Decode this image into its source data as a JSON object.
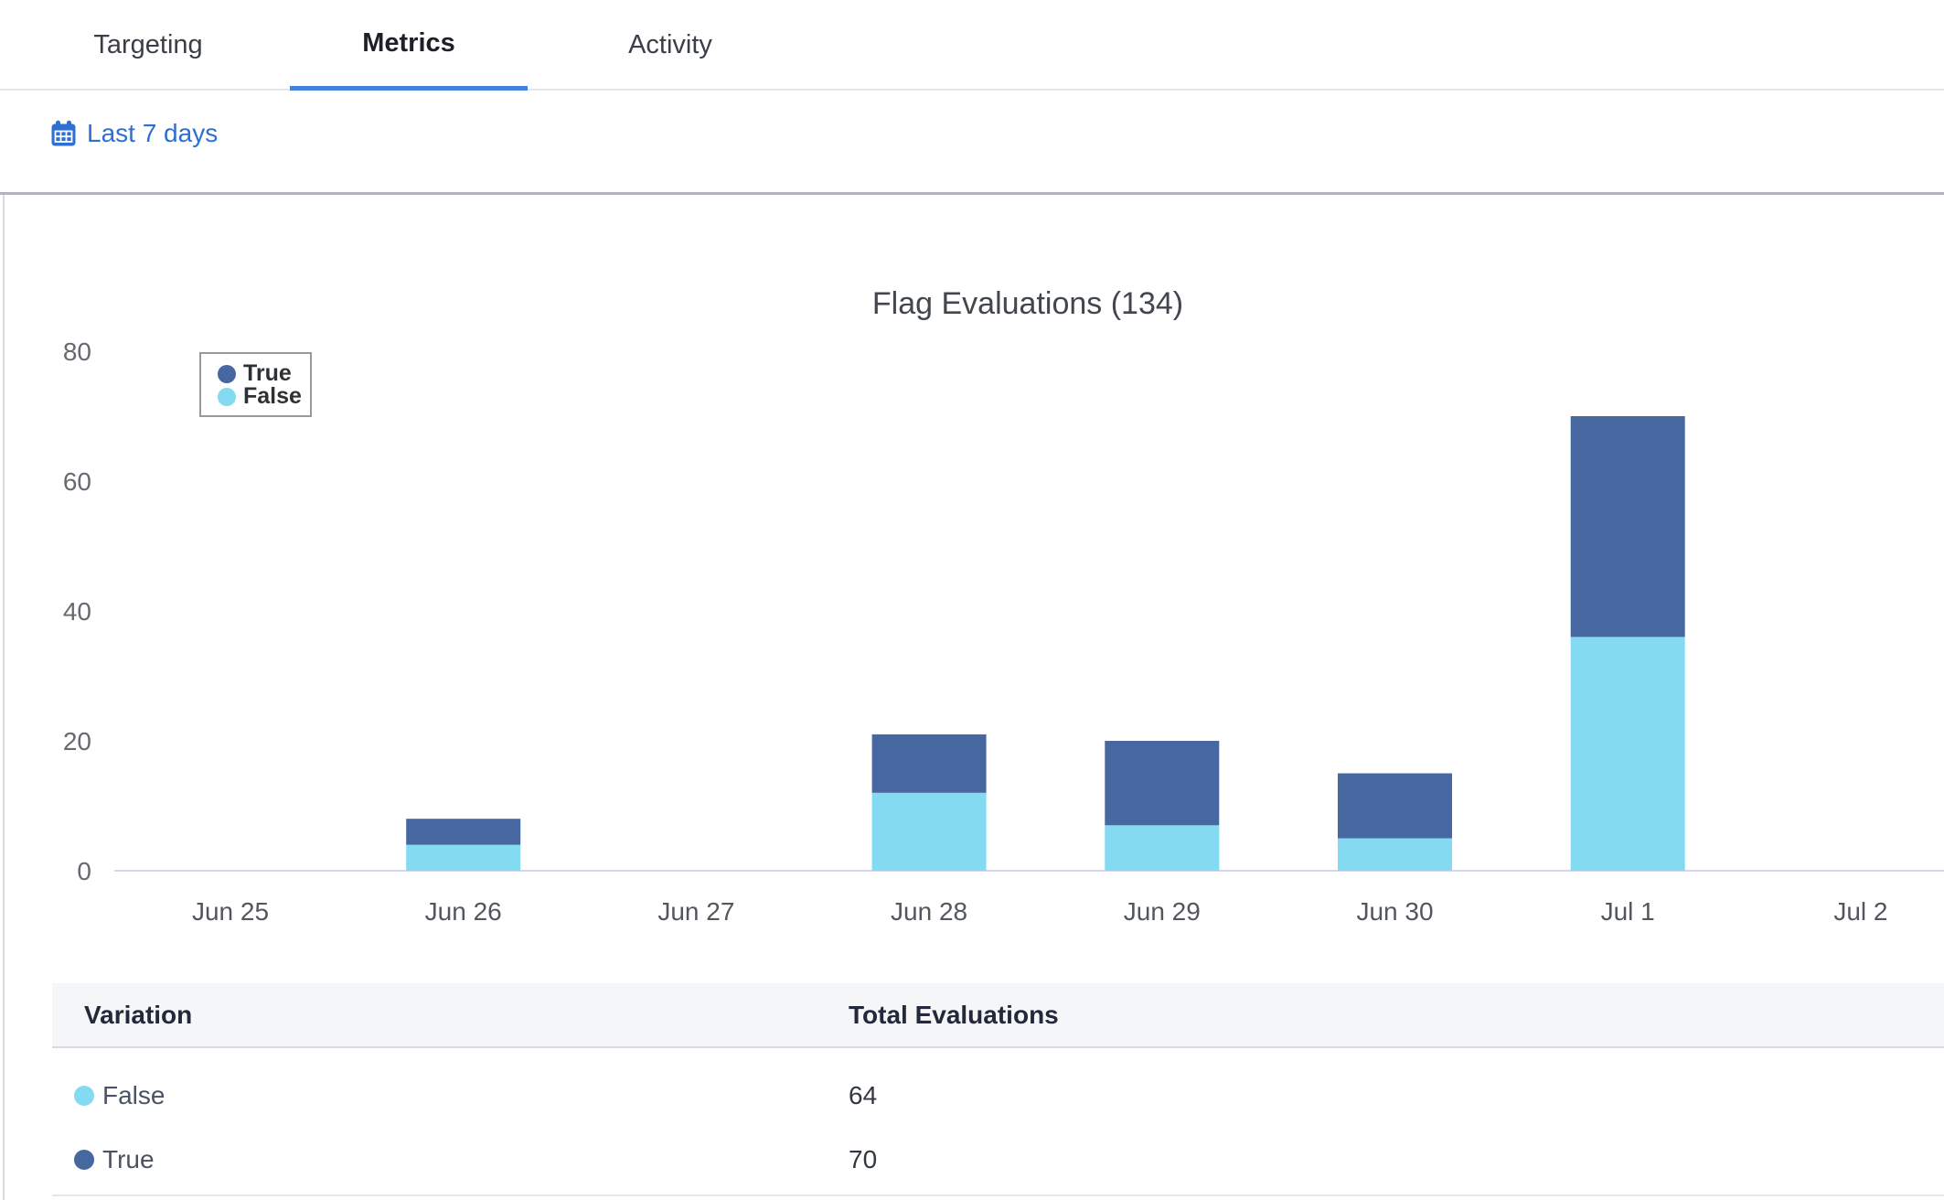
{
  "tabs": [
    {
      "label": "Targeting",
      "active": false
    },
    {
      "label": "Metrics",
      "active": true
    },
    {
      "label": "Activity",
      "active": false
    }
  ],
  "filter_bar": {
    "date_range_label": "Last 7 days"
  },
  "chart_data": {
    "type": "bar",
    "stacked": true,
    "title": "Flag Evaluations (134)",
    "total_evaluations": 134,
    "categories": [
      "Jun 25",
      "Jun 26",
      "Jun 27",
      "Jun 28",
      "Jun 29",
      "Jun 30",
      "Jul 1",
      "Jul 2"
    ],
    "series": [
      {
        "name": "True",
        "color": "#4767A1",
        "values": [
          0,
          4,
          0,
          9,
          13,
          10,
          34,
          0
        ]
      },
      {
        "name": "False",
        "color": "#83DAF1",
        "values": [
          0,
          4,
          0,
          12,
          7,
          5,
          36,
          0
        ]
      }
    ],
    "stack_order_bottom_to_top": [
      "False",
      "True"
    ],
    "series_totals": {
      "False": 64,
      "True": 70
    },
    "legend": {
      "position": "top-left",
      "entries": [
        "True",
        "False"
      ]
    },
    "ylabel": "",
    "xlabel": "",
    "yticks": [
      0,
      20,
      40,
      60,
      80
    ],
    "ylim": [
      0,
      80
    ],
    "grid": false
  },
  "table": {
    "headers": [
      "Variation",
      "Total Evaluations"
    ],
    "rows": [
      {
        "variation": "False",
        "total": "64"
      },
      {
        "variation": "True",
        "total": "70"
      }
    ]
  },
  "colors": {
    "true": "#4767A1",
    "false": "#83DAF1",
    "accent_blue": "#2D6FD2",
    "tab_underline": "#4283DC",
    "axis_line": "#D4D8E8",
    "axis_label": "#66696F",
    "xaxis_label": "#53575D"
  }
}
